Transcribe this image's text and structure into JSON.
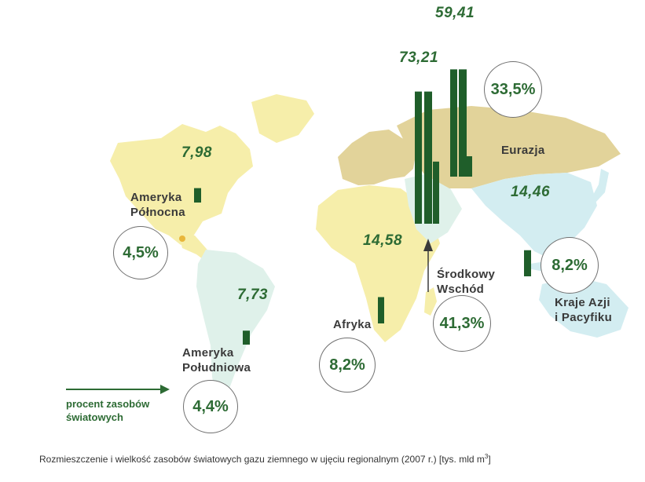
{
  "caption": "Rozmieszczenie i wielkość zasobów światowych gazu ziemnego w ujęciu regionalnym (2007 r.) [tys. mld m",
  "caption_sup": "3",
  "caption_end": "]",
  "legend": {
    "line1": "procent zasobów",
    "line2": "światowych"
  },
  "colors": {
    "bar": "#1f5e2a",
    "land_yellow": "#f6eeaa",
    "land_tan": "#e2d39a",
    "land_sky": "#d3edf1",
    "land_mint": "#dff1ea",
    "text_green": "#2d6b34"
  },
  "regions": [
    {
      "id": "north-america",
      "name_lines": [
        "Ameryka",
        "Północna"
      ],
      "value": "7,98",
      "percent": "4,5%"
    },
    {
      "id": "south-america",
      "name_lines": [
        "Ameryka",
        "Południowa"
      ],
      "value": "7,73",
      "percent": "4,4%"
    },
    {
      "id": "africa",
      "name_lines": [
        "Afryka"
      ],
      "value": "14,58",
      "percent": "8,2%"
    },
    {
      "id": "middle-east",
      "name_lines": [
        "Środkowy",
        "Wschód"
      ],
      "value": "73,21",
      "percent": "41,3%"
    },
    {
      "id": "eurasia",
      "name_lines": [
        "Eurazja"
      ],
      "value": "59,41",
      "percent": "33,5%"
    },
    {
      "id": "asia-pacific",
      "name_lines": [
        "Kraje Azji",
        "i Pacyfiku"
      ],
      "value": "14,46",
      "percent": "8,2%"
    }
  ]
}
